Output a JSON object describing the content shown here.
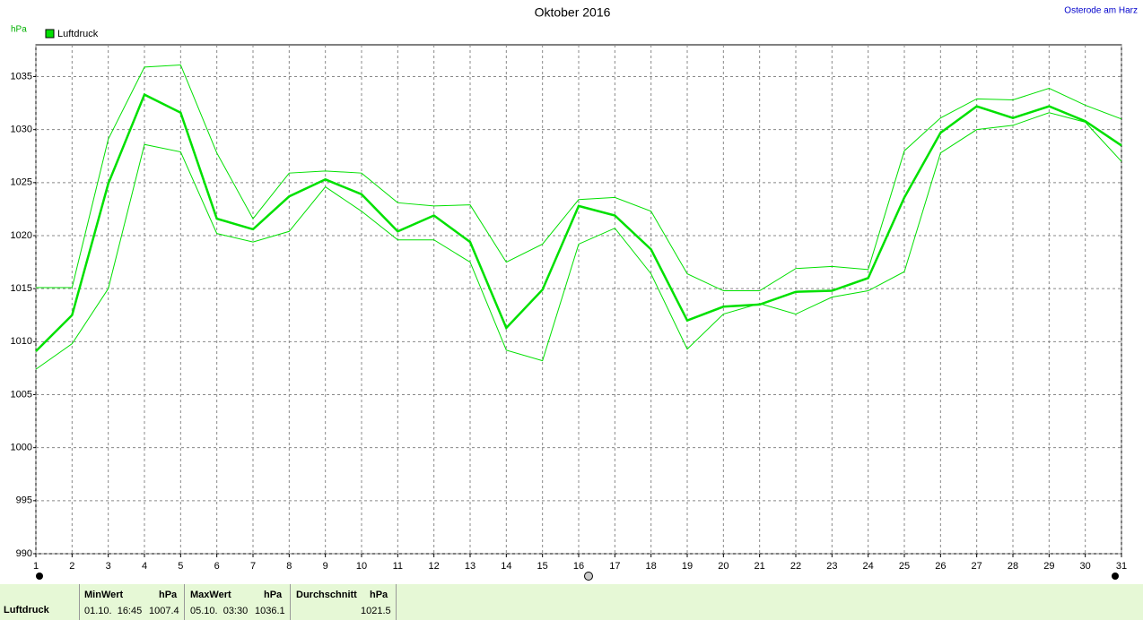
{
  "chart_data": {
    "type": "line",
    "title": "Oktober 2016",
    "subtitle": "Osterode am Harz",
    "y_label": "hPa",
    "x": [
      1,
      2,
      3,
      4,
      5,
      6,
      7,
      8,
      9,
      10,
      11,
      12,
      13,
      14,
      15,
      16,
      17,
      18,
      19,
      20,
      21,
      22,
      23,
      24,
      25,
      26,
      27,
      28,
      29,
      30,
      31
    ],
    "xlim": [
      1,
      31
    ],
    "xticks": [
      1,
      2,
      3,
      4,
      5,
      6,
      7,
      8,
      9,
      10,
      11,
      12,
      13,
      14,
      15,
      16,
      17,
      18,
      19,
      20,
      21,
      22,
      23,
      24,
      25,
      26,
      27,
      28,
      29,
      30,
      31
    ],
    "ylim": [
      990,
      1038
    ],
    "yticks": [
      990,
      995,
      1000,
      1005,
      1010,
      1015,
      1020,
      1025,
      1030,
      1035
    ],
    "grid": true,
    "legend": "top-left",
    "series": [
      {
        "name": "Luftdruck",
        "color": "#00e000",
        "values": [
          1009.1,
          1012.5,
          1024.9,
          1033.3,
          1031.6,
          1021.6,
          1020.6,
          1023.7,
          1025.3,
          1023.9,
          1020.4,
          1021.9,
          1019.4,
          1011.3,
          1014.9,
          1022.8,
          1021.9,
          1018.7,
          1012.0,
          1013.3,
          1013.5,
          1014.7,
          1014.8,
          1016.0,
          1023.6,
          1029.7,
          1032.2,
          1031.1,
          1032.2,
          1030.8,
          1028.5
        ]
      },
      {
        "color": "#00e000",
        "values": [
          1015.1,
          1015.1,
          1029.1,
          1035.9,
          1036.1,
          1027.8,
          1021.6,
          1025.9,
          1026.1,
          1025.9,
          1023.1,
          1022.8,
          1022.9,
          1017.5,
          1019.2,
          1023.4,
          1023.6,
          1022.3,
          1016.4,
          1014.8,
          1014.8,
          1016.9,
          1017.1,
          1016.8,
          1028.0,
          1031.1,
          1032.9,
          1032.8,
          1033.9,
          1032.3,
          1031.0
        ]
      },
      {
        "color": "#00e000",
        "values": [
          1007.4,
          1009.8,
          1015.0,
          1028.6,
          1027.9,
          1020.2,
          1019.4,
          1020.4,
          1024.6,
          1022.3,
          1019.6,
          1019.6,
          1017.5,
          1009.2,
          1008.2,
          1019.2,
          1020.7,
          1016.4,
          1009.3,
          1012.6,
          1013.6,
          1012.6,
          1014.2,
          1014.8,
          1016.6,
          1027.8,
          1030.0,
          1030.4,
          1031.6,
          1030.7,
          1027.0
        ]
      }
    ]
  },
  "summary": {
    "name": "Luftdruck",
    "min": {
      "label": "MinWert",
      "unit": "hPa",
      "time": "01.10.  16:45",
      "value": "1007.4"
    },
    "max": {
      "label": "MaxWert",
      "unit": "hPa",
      "time": "05.10.  03:30",
      "value": "1036.1"
    },
    "avg": {
      "label": "Durchschnitt",
      "unit": "hPa",
      "value": "1021.5"
    }
  }
}
